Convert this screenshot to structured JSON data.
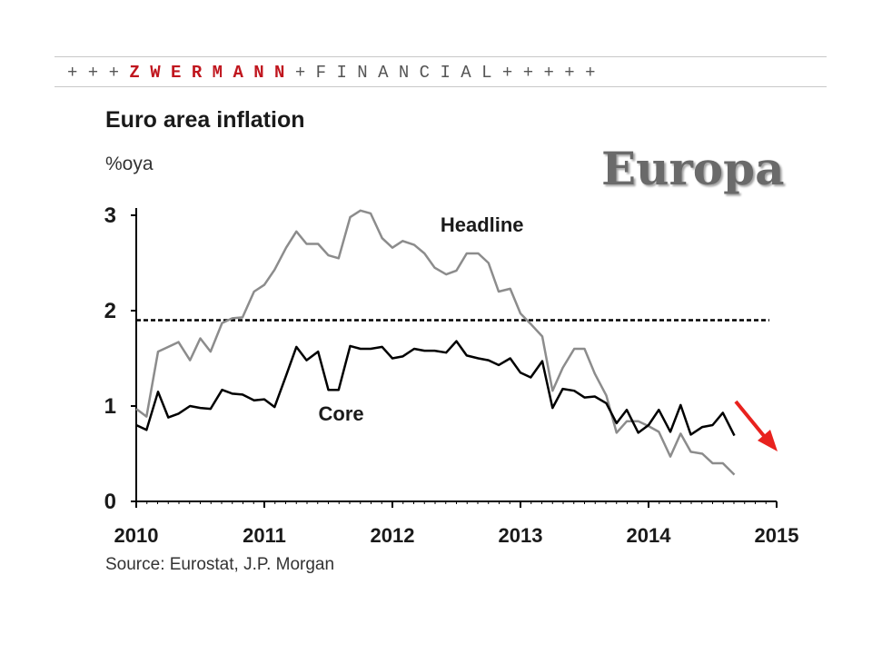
{
  "banner": {
    "prefix": "+ + + ",
    "brand": "Z W E R M A N N",
    "suffix": " + F I N A N C I A L + + + + +"
  },
  "overlay_label": "Europa",
  "colors": {
    "brand": "#c0161e",
    "headline_line": "#8c8c8c",
    "core_line": "#000000",
    "target_line": "#000000",
    "arrow": "#e8221e"
  },
  "chart_data": {
    "type": "line",
    "title": "Euro area inflation",
    "subtitle": "%oya",
    "source": "Source: Eurostat, J.P. Morgan",
    "x_ticks": [
      "2010",
      "2011",
      "2012",
      "2013",
      "2014",
      "2015"
    ],
    "y_ticks": [
      "0",
      "1",
      "2",
      "3"
    ],
    "xlim": [
      2010,
      2015
    ],
    "ylim": [
      0,
      3
    ],
    "grid": false,
    "target_line": {
      "value": 1.9,
      "style": "dashed",
      "from": 2010,
      "to": 2015
    },
    "series": [
      {
        "name": "Headline",
        "color": "#8c8c8c",
        "x": [
          2010.0,
          2010.08,
          2010.17,
          2010.25,
          2010.33,
          2010.42,
          2010.5,
          2010.58,
          2010.67,
          2010.75,
          2010.83,
          2010.92,
          2011.0,
          2011.08,
          2011.17,
          2011.25,
          2011.33,
          2011.42,
          2011.5,
          2011.58,
          2011.67,
          2011.75,
          2011.83,
          2011.92,
          2012.0,
          2012.08,
          2012.17,
          2012.25,
          2012.33,
          2012.42,
          2012.5,
          2012.58,
          2012.67,
          2012.75,
          2012.83,
          2012.92,
          2013.0,
          2013.08,
          2013.17,
          2013.25,
          2013.33,
          2013.42,
          2013.5,
          2013.58,
          2013.67,
          2013.75,
          2013.83,
          2013.92,
          2014.0,
          2014.08,
          2014.17,
          2014.25,
          2014.33,
          2014.42,
          2014.5,
          2014.58,
          2014.67
        ],
        "values": [
          0.97,
          0.89,
          1.57,
          1.62,
          1.67,
          1.48,
          1.71,
          1.57,
          1.87,
          1.92,
          1.93,
          2.2,
          2.27,
          2.43,
          2.66,
          2.83,
          2.7,
          2.7,
          2.58,
          2.55,
          2.98,
          3.05,
          3.02,
          2.76,
          2.66,
          2.73,
          2.69,
          2.6,
          2.45,
          2.38,
          2.42,
          2.6,
          2.6,
          2.5,
          2.2,
          2.23,
          1.97,
          1.86,
          1.73,
          1.16,
          1.4,
          1.6,
          1.6,
          1.34,
          1.11,
          0.72,
          0.84,
          0.84,
          0.79,
          0.73,
          0.47,
          0.71,
          0.52,
          0.5,
          0.4,
          0.4,
          0.28
        ]
      },
      {
        "name": "Core",
        "color": "#000000",
        "x": [
          2010.0,
          2010.08,
          2010.17,
          2010.25,
          2010.33,
          2010.42,
          2010.5,
          2010.58,
          2010.67,
          2010.75,
          2010.83,
          2010.92,
          2011.0,
          2011.08,
          2011.17,
          2011.25,
          2011.33,
          2011.42,
          2011.5,
          2011.58,
          2011.67,
          2011.75,
          2011.83,
          2011.92,
          2012.0,
          2012.08,
          2012.17,
          2012.25,
          2012.33,
          2012.42,
          2012.5,
          2012.58,
          2012.67,
          2012.75,
          2012.83,
          2012.92,
          2013.0,
          2013.08,
          2013.17,
          2013.25,
          2013.33,
          2013.42,
          2013.5,
          2013.58,
          2013.67,
          2013.75,
          2013.83,
          2013.92,
          2014.0,
          2014.08,
          2014.17,
          2014.25,
          2014.33,
          2014.42,
          2014.5,
          2014.58,
          2014.67
        ],
        "values": [
          0.8,
          0.75,
          1.15,
          0.88,
          0.92,
          1.0,
          0.98,
          0.97,
          1.17,
          1.13,
          1.12,
          1.06,
          1.07,
          0.99,
          1.32,
          1.62,
          1.48,
          1.57,
          1.17,
          1.17,
          1.63,
          1.6,
          1.6,
          1.62,
          1.5,
          1.52,
          1.6,
          1.58,
          1.58,
          1.56,
          1.68,
          1.53,
          1.5,
          1.48,
          1.43,
          1.5,
          1.35,
          1.3,
          1.47,
          0.98,
          1.18,
          1.16,
          1.09,
          1.1,
          1.03,
          0.82,
          0.96,
          0.72,
          0.8,
          0.96,
          0.73,
          1.01,
          0.7,
          0.78,
          0.8,
          0.93,
          0.69
        ]
      }
    ],
    "annotations": [
      {
        "text": "Headline",
        "x": 2012.7,
        "y": 2.83
      },
      {
        "text": "Core",
        "x": 2011.6,
        "y": 0.85
      }
    ]
  }
}
